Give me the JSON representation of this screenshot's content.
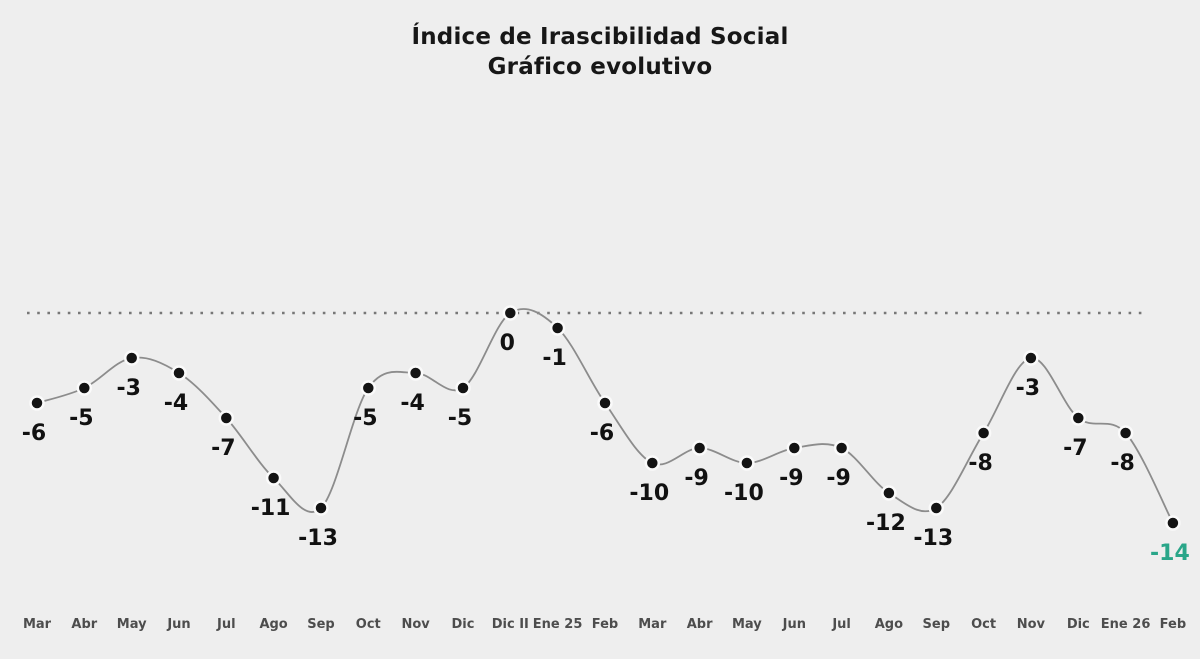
{
  "page": {
    "background_color": "#eeeeee"
  },
  "header": {
    "title": "Índice de Irascibilidad Social",
    "subtitle": "Gráfico evolutivo"
  },
  "chart_data": {
    "type": "line",
    "title": "Índice de Irascibilidad Social",
    "subtitle": "Gráfico evolutivo",
    "categories": [
      "Mar",
      "Abr",
      "May",
      "Jun",
      "Jul",
      "Ago",
      "Sep",
      "Oct",
      "Nov",
      "Dic",
      "Dic II",
      "Ene 25",
      "Feb",
      "Mar",
      "Abr",
      "May",
      "Jun",
      "Jul",
      "Ago",
      "Sep",
      "Oct",
      "Nov",
      "Dic",
      "Ene 26",
      "Feb"
    ],
    "values": [
      -6,
      -5,
      -3,
      -4,
      -7,
      -11,
      -13,
      -5,
      -4,
      -5,
      0,
      -1,
      -6,
      -10,
      -9,
      -10,
      -9,
      -9,
      -12,
      -13,
      -8,
      -3,
      -7,
      -8,
      -14
    ],
    "point_labels": [
      "-6",
      "-5",
      "-3",
      "-4",
      "-7",
      "-11",
      "-13",
      "-5",
      "-4",
      "-5",
      "0",
      "-1",
      "-6",
      "-10",
      "-9",
      "-10",
      "-9",
      "-9",
      "-12",
      "-13",
      "-8",
      "-3",
      "-7",
      "-8",
      "-14"
    ],
    "xlabel": "",
    "ylabel": "",
    "ylim": [
      -14,
      0
    ],
    "grid": "dotted zero line only",
    "legend": "none",
    "zero_line_value": 0,
    "last_point_highlighted": true,
    "colors": {
      "background": "#eeeeee",
      "line": "#8c8c8c",
      "point_fill": "#141414",
      "point_halo": "#fafafa",
      "value_label": "#111111",
      "value_label_last": "#2aa689",
      "axis_label": "#4d4d4d",
      "gridline_dots": "#777777",
      "title": "#171717"
    }
  }
}
